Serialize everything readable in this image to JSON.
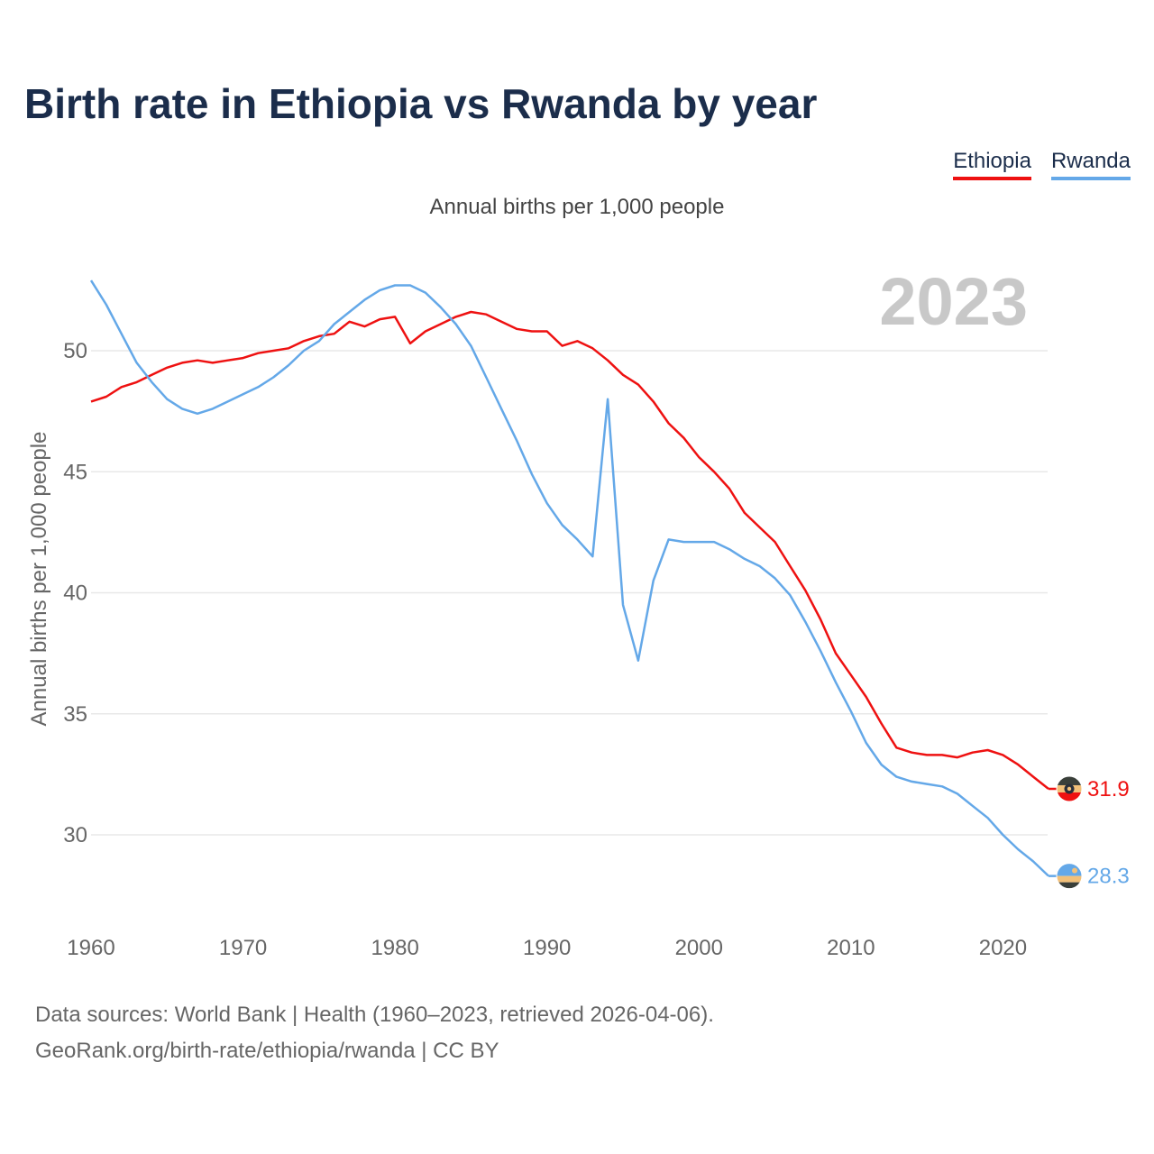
{
  "title": "Birth rate in Ethiopia vs Rwanda by year",
  "subtitle": "Annual births per 1,000 people",
  "year_watermark": "2023",
  "footer": {
    "sources": "Data sources: World Bank | Health (1960–2023, retrieved 2026-04-06).",
    "credit": "GeoRank.org/birth-rate/ethiopia/rwanda | CC BY"
  },
  "colors": {
    "ethiopia": "#ee1111",
    "rwanda": "#64a8e8",
    "grid": "#e8e8e8",
    "axis_text": "#666666",
    "watermark": "#c8c8c8"
  },
  "chart_data": {
    "type": "line",
    "title": "Birth rate in Ethiopia vs Rwanda by year",
    "xlabel": "",
    "ylabel": "Annual births per 1,000 people",
    "xlim": [
      1960,
      2023
    ],
    "ylim": [
      27,
      55
    ],
    "x_ticks": [
      1960,
      1970,
      1980,
      1990,
      2000,
      2010,
      2020
    ],
    "y_ticks": [
      30,
      35,
      40,
      45,
      50
    ],
    "grid": true,
    "legend_position": "top-right",
    "x": [
      1960,
      1961,
      1962,
      1963,
      1964,
      1965,
      1966,
      1967,
      1968,
      1969,
      1970,
      1971,
      1972,
      1973,
      1974,
      1975,
      1976,
      1977,
      1978,
      1979,
      1980,
      1981,
      1982,
      1983,
      1984,
      1985,
      1986,
      1987,
      1988,
      1989,
      1990,
      1991,
      1992,
      1993,
      1994,
      1995,
      1996,
      1997,
      1998,
      1999,
      2000,
      2001,
      2002,
      2003,
      2004,
      2005,
      2006,
      2007,
      2008,
      2009,
      2010,
      2011,
      2012,
      2013,
      2014,
      2015,
      2016,
      2017,
      2018,
      2019,
      2020,
      2021,
      2022,
      2023
    ],
    "series": [
      {
        "name": "Ethiopia",
        "end_label": "31.9",
        "values": [
          47.9,
          48.1,
          48.5,
          48.7,
          49.0,
          49.3,
          49.5,
          49.6,
          49.5,
          49.6,
          49.7,
          49.9,
          50.0,
          50.1,
          50.4,
          50.6,
          50.7,
          51.2,
          51.0,
          51.3,
          51.4,
          50.3,
          50.8,
          51.1,
          51.4,
          51.6,
          51.5,
          51.2,
          50.9,
          50.8,
          50.8,
          50.2,
          50.4,
          50.1,
          49.6,
          49.0,
          48.6,
          47.9,
          47.0,
          46.4,
          45.6,
          45.0,
          44.3,
          43.3,
          42.7,
          42.1,
          41.1,
          40.1,
          38.9,
          37.5,
          36.6,
          35.7,
          34.6,
          33.6,
          33.4,
          33.3,
          33.3,
          33.2,
          33.4,
          33.5,
          33.3,
          32.9,
          32.4,
          31.9
        ]
      },
      {
        "name": "Rwanda",
        "end_label": "28.3",
        "values": [
          52.9,
          51.9,
          50.7,
          49.5,
          48.7,
          48.0,
          47.6,
          47.4,
          47.6,
          47.9,
          48.2,
          48.5,
          48.9,
          49.4,
          50.0,
          50.4,
          51.1,
          51.6,
          52.1,
          52.5,
          52.7,
          52.7,
          52.4,
          51.8,
          51.1,
          50.2,
          48.9,
          47.6,
          46.3,
          44.9,
          43.7,
          42.8,
          42.2,
          41.5,
          48.0,
          39.5,
          37.2,
          40.5,
          42.2,
          42.1,
          42.1,
          42.1,
          41.8,
          41.4,
          41.1,
          40.6,
          39.9,
          38.8,
          37.6,
          36.3,
          35.1,
          33.8,
          32.9,
          32.4,
          32.2,
          32.1,
          32.0,
          31.7,
          31.2,
          30.7,
          30.0,
          29.4,
          28.9,
          28.3
        ]
      }
    ]
  }
}
